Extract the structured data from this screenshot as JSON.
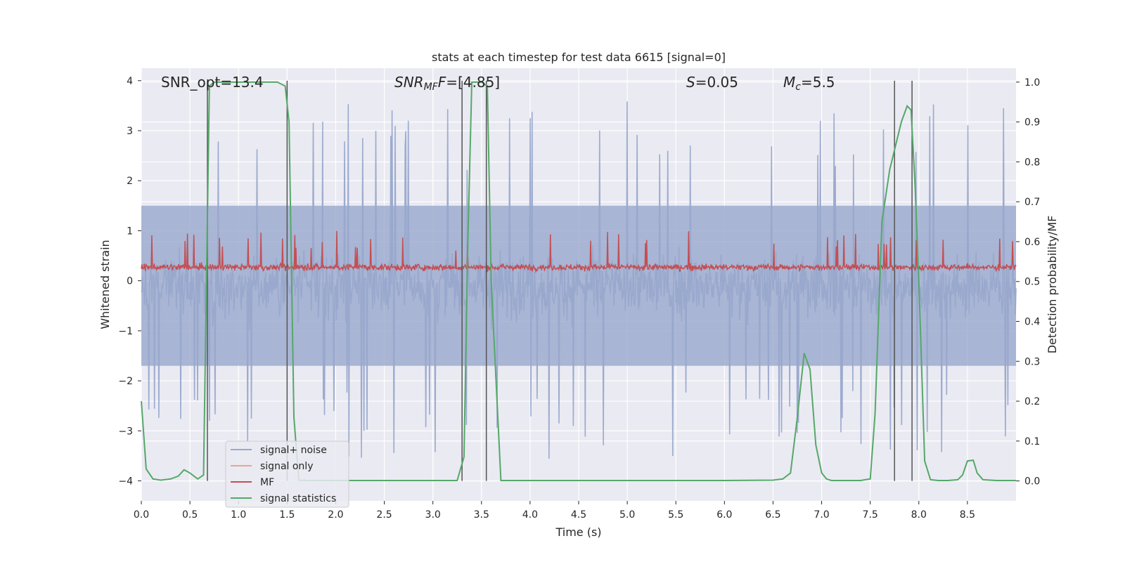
{
  "chart_data": {
    "type": "line",
    "title": "stats at each timestep for test data 6615 [signal=0]",
    "xlabel": "Time (s)",
    "ylabel_left": "Whitened strain",
    "ylabel_right": "Detection probability/MF",
    "xlim": [
      0,
      9.0
    ],
    "ylim_left": [
      -4.4,
      4.25
    ],
    "ylim_right": [
      -0.05,
      1.035
    ],
    "xticks": [
      0.0,
      0.5,
      1.0,
      1.5,
      2.0,
      2.5,
      3.0,
      3.5,
      4.0,
      4.5,
      5.0,
      5.5,
      6.0,
      6.5,
      7.0,
      7.5,
      8.0,
      8.5
    ],
    "xtick_labels": [
      "0.0",
      "0.5",
      "1.0",
      "1.5",
      "2.0",
      "2.5",
      "3.0",
      "3.5",
      "4.0",
      "4.5",
      "5.0",
      "5.5",
      "6.0",
      "6.5",
      "7.0",
      "7.5",
      "8.0",
      "8.5"
    ],
    "yticks_left": [
      4,
      3,
      2,
      1,
      0,
      -1,
      -2,
      -3,
      -4
    ],
    "ytick_labels_left": [
      "4",
      "3",
      "2",
      "1",
      "0",
      "−1",
      "−2",
      "−3",
      "−4"
    ],
    "yticks_right": [
      1.0,
      0.9,
      0.8,
      0.7,
      0.6,
      0.5,
      0.4,
      0.3,
      0.2,
      0.1,
      0.0
    ],
    "ytick_labels_right": [
      "1.0",
      "0.9",
      "0.8",
      "0.7",
      "0.6",
      "0.5",
      "0.4",
      "0.3",
      "0.2",
      "0.1",
      "0.0"
    ],
    "annotations": {
      "snr_opt": "SNR_opt=13.4",
      "snr_mf_main": "SNR",
      "snr_mf_sub": "MF",
      "snr_mf_rest": "=[4.85]",
      "s_main": "S",
      "s_rest": "=0.05",
      "mc_main": "M",
      "mc_sub": "c",
      "mc_rest": "=5.5"
    },
    "legend": [
      {
        "label": "signal+ noise",
        "color": "#98a8cc"
      },
      {
        "label": "signal only",
        "color": "#e8a68c"
      },
      {
        "label": "MF",
        "color": "#c44e52"
      },
      {
        "label": "signal statistics",
        "color": "#55a868"
      }
    ],
    "noise_series": {
      "name": "signal+ noise",
      "color": "#98a8cc",
      "n_samples": 1400,
      "typical_band": [
        -1.7,
        1.5
      ],
      "max_peak": 3.7,
      "min_peak": -3.9
    },
    "mf_series": {
      "name": "MF",
      "color": "#c44e52",
      "n_samples": 1500,
      "band": [
        0.0,
        0.55
      ],
      "max_peak": 1.0
    },
    "vertical_lines_x": [
      0.68,
      1.5,
      3.3,
      3.55,
      7.75,
      7.93
    ],
    "signal_statistics": {
      "name": "signal statistics",
      "color": "#55a868",
      "x": [
        0.0,
        0.05,
        0.12,
        0.2,
        0.3,
        0.38,
        0.44,
        0.5,
        0.58,
        0.64,
        0.7,
        0.75,
        0.8,
        1.0,
        1.2,
        1.4,
        1.48,
        1.52,
        1.57,
        1.62,
        1.7,
        2.0,
        2.5,
        3.0,
        3.25,
        3.32,
        3.36,
        3.4,
        3.45,
        3.5,
        3.56,
        3.6,
        3.7,
        4.0,
        5.0,
        6.0,
        6.5,
        6.6,
        6.68,
        6.75,
        6.82,
        6.88,
        6.94,
        7.0,
        7.05,
        7.1,
        7.2,
        7.3,
        7.4,
        7.5,
        7.55,
        7.62,
        7.7,
        7.76,
        7.82,
        7.88,
        7.92,
        7.96,
        8.0,
        8.06,
        8.12,
        8.2,
        8.3,
        8.4,
        8.45,
        8.5,
        8.56,
        8.6,
        8.66,
        8.8,
        9.0
      ],
      "values": [
        0.2,
        0.03,
        0.005,
        0.002,
        0.005,
        0.012,
        0.028,
        0.02,
        0.005,
        0.015,
        0.99,
        1.0,
        1.0,
        1.0,
        1.0,
        1.0,
        0.99,
        0.9,
        0.16,
        0.002,
        0.001,
        0.001,
        0.001,
        0.001,
        0.001,
        0.06,
        0.6,
        1.0,
        1.0,
        1.0,
        0.99,
        0.5,
        0.001,
        0.001,
        0.001,
        0.001,
        0.002,
        0.005,
        0.02,
        0.16,
        0.32,
        0.28,
        0.09,
        0.02,
        0.005,
        0.001,
        0.001,
        0.001,
        0.001,
        0.005,
        0.17,
        0.65,
        0.78,
        0.84,
        0.9,
        0.94,
        0.93,
        0.75,
        0.5,
        0.05,
        0.003,
        0.001,
        0.001,
        0.003,
        0.015,
        0.05,
        0.052,
        0.02,
        0.003,
        0.001,
        0.001
      ]
    }
  }
}
